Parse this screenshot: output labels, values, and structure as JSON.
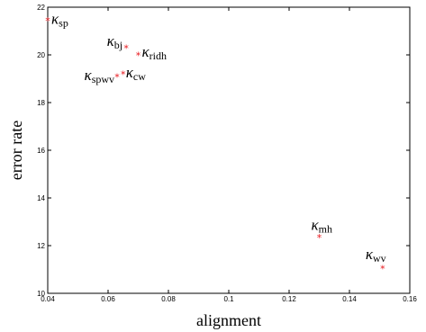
{
  "chart_data": {
    "type": "scatter",
    "title": "",
    "xlabel": "alignment",
    "ylabel": "error rate",
    "xlim": [
      0.04,
      0.16
    ],
    "ylim": [
      10,
      22
    ],
    "xticks": [
      0.04,
      0.06,
      0.08,
      0.1,
      0.12,
      0.14,
      0.16
    ],
    "xtick_labels": [
      "0.04",
      "0.06",
      "0.08",
      "0.1",
      "0.12",
      "0.14",
      "0.16"
    ],
    "yticks": [
      10,
      12,
      14,
      16,
      18,
      20,
      22
    ],
    "ytick_labels": [
      "10",
      "12",
      "14",
      "16",
      "18",
      "20",
      "22"
    ],
    "grid": false,
    "marker_color": "#e8141a",
    "points": [
      {
        "sym": "κ",
        "sub": "sp",
        "x": 0.04,
        "y": 21.45
      },
      {
        "sym": "κ",
        "sub": "bj",
        "x": 0.066,
        "y": 20.3
      },
      {
        "sym": "κ",
        "sub": "ridh",
        "x": 0.07,
        "y": 20.0
      },
      {
        "sym": "κ",
        "sub": "spwv",
        "x": 0.063,
        "y": 19.1
      },
      {
        "sym": "κ",
        "sub": "cw",
        "x": 0.065,
        "y": 19.2
      },
      {
        "sym": "κ",
        "sub": "mh",
        "x": 0.13,
        "y": 12.35
      },
      {
        "sym": "κ",
        "sub": "wv",
        "x": 0.151,
        "y": 11.05
      }
    ]
  }
}
